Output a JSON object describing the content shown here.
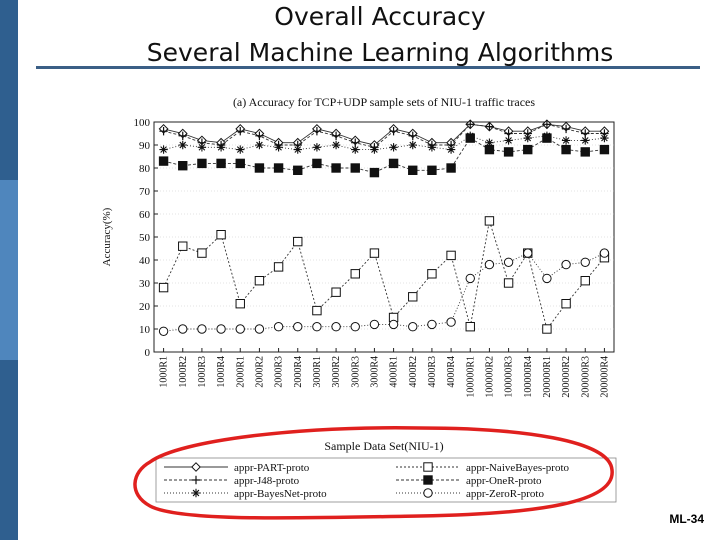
{
  "slide": {
    "title_line1": "Overall Accuracy",
    "title_line2": "Several Machine Learning Algorithms",
    "footer": "ML-34"
  },
  "chart_data": {
    "type": "line",
    "title": "(a) Accuracy for TCP+UDP sample sets of NIU-1 traffic traces",
    "xlabel": "Sample Data Set(NIU-1)",
    "ylabel": "Accuracy(%)",
    "ylim": [
      0,
      100
    ],
    "yticks": [
      0,
      10,
      20,
      30,
      40,
      50,
      60,
      70,
      80,
      90,
      100
    ],
    "grid": true,
    "legend_position": "bottom",
    "categories": [
      "1000R1",
      "1000R2",
      "1000R3",
      "1000R4",
      "2000R1",
      "2000R2",
      "2000R3",
      "2000R4",
      "3000R1",
      "3000R2",
      "3000R3",
      "3000R4",
      "4000R1",
      "4000R2",
      "4000R3",
      "4000R4",
      "100000R1",
      "100000R2",
      "100000R3",
      "100000R4",
      "200000R1",
      "200000R2",
      "200000R3",
      "200000R4"
    ],
    "series": [
      {
        "name": "appr-PART-proto",
        "marker": "diamond",
        "values": [
          97,
          95,
          92,
          91,
          97,
          95,
          91,
          91,
          97,
          95,
          92,
          90,
          97,
          95,
          91,
          91,
          99,
          98,
          96,
          96,
          99,
          98,
          96,
          96
        ]
      },
      {
        "name": "appr-J48-proto",
        "marker": "plus",
        "values": [
          96,
          94,
          91,
          90,
          96,
          94,
          90,
          90,
          96,
          94,
          91,
          89,
          96,
          94,
          90,
          90,
          99,
          98,
          95,
          95,
          99,
          97,
          95,
          95
        ]
      },
      {
        "name": "appr-BayesNet-proto",
        "marker": "asterisk",
        "values": [
          88,
          90,
          89,
          89,
          88,
          90,
          89,
          88,
          89,
          90,
          88,
          88,
          89,
          90,
          89,
          88,
          94,
          91,
          92,
          93,
          94,
          92,
          92,
          93
        ]
      },
      {
        "name": "appr-NaiveBayes-proto",
        "marker": "square-open",
        "values": [
          28,
          46,
          43,
          51,
          21,
          31,
          37,
          48,
          18,
          26,
          34,
          43,
          15,
          24,
          34,
          42,
          11,
          57,
          30,
          43,
          10,
          21,
          31,
          41
        ]
      },
      {
        "name": "appr-OneR-proto",
        "marker": "square-filled",
        "values": [
          83,
          81,
          82,
          82,
          82,
          80,
          80,
          79,
          82,
          80,
          80,
          78,
          82,
          79,
          79,
          80,
          93,
          88,
          87,
          88,
          93,
          88,
          87,
          88
        ]
      },
      {
        "name": "appr-ZeroR-proto",
        "marker": "circle",
        "values": [
          9,
          10,
          10,
          10,
          10,
          10,
          11,
          11,
          11,
          11,
          11,
          12,
          12,
          11,
          12,
          13,
          32,
          38,
          39,
          43,
          32,
          38,
          39,
          43
        ]
      }
    ]
  }
}
